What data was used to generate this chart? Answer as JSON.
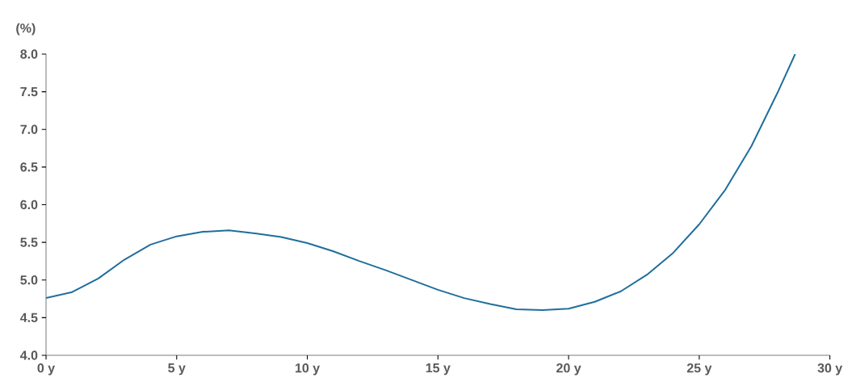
{
  "chart_data": {
    "type": "line",
    "ylabel": "(%)",
    "color": "#1f6e9c",
    "x": [
      0,
      1,
      2,
      3,
      4,
      5,
      6,
      7,
      8,
      9,
      10,
      11,
      12,
      13,
      14,
      15,
      16,
      17,
      18,
      19,
      20,
      21,
      22,
      23,
      24,
      25,
      26,
      27,
      28,
      28.67
    ],
    "values": [
      4.76,
      4.84,
      5.02,
      5.27,
      5.47,
      5.58,
      5.64,
      5.66,
      5.62,
      5.57,
      5.49,
      5.38,
      5.25,
      5.13,
      5.0,
      4.87,
      4.76,
      4.68,
      4.61,
      4.6,
      4.62,
      4.71,
      4.85,
      5.07,
      5.36,
      5.74,
      6.2,
      6.78,
      7.49,
      8.0
    ],
    "xlim": [
      0,
      30
    ],
    "ylim": [
      4.0,
      8.0
    ],
    "xticks": [
      {
        "value": 0,
        "label": "0 y"
      },
      {
        "value": 5,
        "label": "5 y"
      },
      {
        "value": 10,
        "label": "10 y"
      },
      {
        "value": 15,
        "label": "15 y"
      },
      {
        "value": 20,
        "label": "20 y"
      },
      {
        "value": 25,
        "label": "25 y"
      },
      {
        "value": 30,
        "label": "30 y"
      }
    ],
    "yticks": [
      {
        "value": 4.0,
        "label": "4.0"
      },
      {
        "value": 4.5,
        "label": "4.5"
      },
      {
        "value": 5.0,
        "label": "5.0"
      },
      {
        "value": 5.5,
        "label": "5.5"
      },
      {
        "value": 6.0,
        "label": "6.0"
      },
      {
        "value": 6.5,
        "label": "6.5"
      },
      {
        "value": 7.0,
        "label": "7.0"
      },
      {
        "value": 7.5,
        "label": "7.5"
      },
      {
        "value": 8.0,
        "label": "8.0"
      }
    ]
  }
}
